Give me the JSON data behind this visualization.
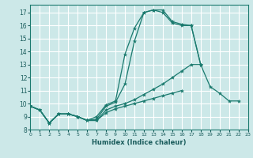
{
  "bg_color": "#cce8e8",
  "grid_color": "#ffffff",
  "line_color": "#1a7a6e",
  "xlabel": "Humidex (Indice chaleur)",
  "xlim": [
    0,
    23
  ],
  "ylim": [
    8,
    17.6
  ],
  "yticks": [
    8,
    9,
    10,
    11,
    12,
    13,
    14,
    15,
    16,
    17
  ],
  "xticks": [
    0,
    1,
    2,
    3,
    4,
    5,
    6,
    7,
    8,
    9,
    10,
    11,
    12,
    13,
    14,
    15,
    16,
    17,
    18,
    19,
    20,
    21,
    22,
    23
  ],
  "series": [
    {
      "x": [
        0,
        1,
        2,
        3,
        4,
        5,
        6,
        7,
        8,
        9,
        10,
        11,
        12,
        13,
        14,
        15,
        16,
        17,
        18,
        19,
        20,
        21,
        22
      ],
      "y": [
        9.8,
        9.5,
        8.5,
        9.2,
        9.2,
        9.0,
        8.7,
        9.0,
        9.9,
        10.2,
        13.8,
        15.8,
        17.0,
        17.2,
        17.2,
        16.3,
        16.1,
        16.0,
        13.0,
        11.3,
        10.8,
        10.2,
        10.2
      ]
    },
    {
      "x": [
        0,
        1,
        2,
        3,
        4,
        5,
        6,
        7,
        8,
        9,
        10,
        11,
        12,
        13,
        14,
        15,
        16,
        17,
        18
      ],
      "y": [
        9.8,
        9.5,
        8.5,
        9.2,
        9.2,
        9.0,
        8.7,
        8.8,
        9.8,
        10.1,
        11.5,
        14.8,
        17.0,
        17.2,
        17.0,
        16.2,
        16.0,
        16.0,
        13.0
      ]
    },
    {
      "x": [
        0,
        1,
        2,
        3,
        4,
        5,
        6,
        7,
        8,
        9,
        10,
        11,
        12,
        13,
        14,
        15,
        16,
        17,
        18,
        19,
        20,
        21,
        22
      ],
      "y": [
        9.8,
        9.5,
        8.5,
        9.2,
        9.2,
        9.0,
        8.7,
        8.7,
        9.5,
        9.8,
        10.0,
        10.3,
        10.7,
        11.1,
        11.5,
        12.0,
        12.5,
        13.0,
        13.0,
        null,
        null,
        null,
        null
      ]
    },
    {
      "x": [
        0,
        1,
        2,
        3,
        4,
        5,
        6,
        7,
        8,
        9,
        10,
        11,
        12,
        13,
        14,
        15,
        16,
        17,
        18,
        19,
        20,
        21,
        22
      ],
      "y": [
        9.8,
        9.5,
        8.5,
        9.2,
        9.2,
        9.0,
        8.7,
        8.7,
        9.3,
        9.6,
        9.8,
        10.0,
        10.2,
        10.4,
        10.6,
        10.8,
        11.0,
        null,
        null,
        null,
        null,
        null,
        null
      ]
    }
  ]
}
